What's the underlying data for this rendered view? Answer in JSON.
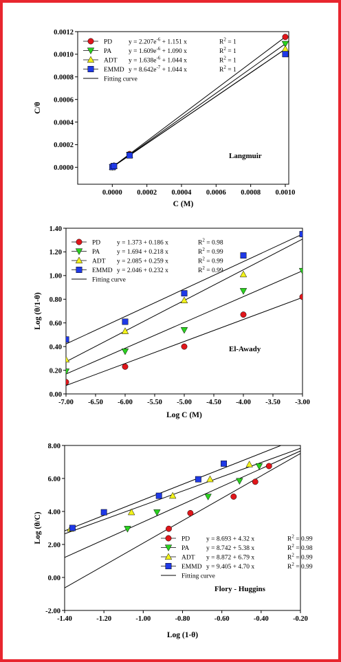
{
  "border_color": "#e8262f",
  "series_colors": {
    "PD": "#e0161b",
    "PA": "#2ad11f",
    "ADT": "#f2f21b",
    "EMMD": "#1f39e6"
  },
  "series_markers": {
    "PD": "circle",
    "PA": "triangle-down",
    "ADT": "triangle-up",
    "EMMD": "square"
  },
  "chart_data": [
    {
      "type": "scatter",
      "title": "",
      "annotation": "Langmuir",
      "xlabel": "C (M)",
      "ylabel": "C/θ",
      "xlim": [
        -0.0002,
        0.00102
      ],
      "ylim": [
        -0.00015,
        0.0012
      ],
      "xticks": [
        0.0,
        0.0002,
        0.0004,
        0.0006,
        0.0008,
        0.001
      ],
      "xtick_labels": [
        "0.0000",
        "0.0002",
        "0.0004",
        "0.0006",
        "0.0008",
        "0.0010"
      ],
      "yticks": [
        0.0,
        0.0002,
        0.0004,
        0.0006,
        0.0008,
        0.001,
        0.0012
      ],
      "ytick_labels": [
        "0.0000",
        "0.0002",
        "0.0004",
        "0.0006",
        "0.0008",
        "0.0010",
        "0.0012"
      ],
      "legend_position": "top-left",
      "fit_label": "Fitting curve",
      "series": [
        {
          "name": "PD",
          "equation": "y = 2.207e-6 + 1.151 x",
          "eq_base": "y = 2.207e",
          "eq_exp": "-6",
          "eq_tail": " + 1.151 x",
          "r2_label": "R",
          "r2_exp": "2",
          "r2_value": " = 1",
          "x": [
            1e-06,
            1e-05,
            0.0001,
            0.001
          ],
          "y": [
            3.4e-06,
            1.38e-05,
            0.000117,
            0.001153
          ],
          "fit": {
            "intercept": 2.207e-06,
            "slope": 1.151
          }
        },
        {
          "name": "PA",
          "equation": "y = 1.609e-6 + 1.090 x",
          "eq_base": "y = 1.609e",
          "eq_exp": "-6",
          "eq_tail": " + 1.090 x",
          "r2_label": "R",
          "r2_exp": "2",
          "r2_value": " = 1",
          "x": [
            1e-06,
            1e-05,
            0.0001,
            0.001
          ],
          "y": [
            2.7e-06,
            1.25e-05,
            0.000111,
            0.001092
          ],
          "fit": {
            "intercept": 1.609e-06,
            "slope": 1.09
          }
        },
        {
          "name": "ADT",
          "equation": "y = 1.638e-6 + 1.044 x",
          "eq_base": "y = 1.638e",
          "eq_exp": "-6",
          "eq_tail": " + 1.044 x",
          "r2_label": "R",
          "r2_exp": "2",
          "r2_value": " = 1",
          "x": [
            1e-06,
            1e-05,
            0.0001,
            0.001
          ],
          "y": [
            2.7e-06,
            1.21e-05,
            0.000106,
            0.001046
          ],
          "fit": {
            "intercept": 1.638e-06,
            "slope": 1.044
          }
        },
        {
          "name": "EMMD",
          "equation": "y = 8.642e-7 + 1.044 x",
          "eq_base": "y = 8.642e",
          "eq_exp": "-7",
          "eq_tail": " + 1.044 x",
          "r2_label": "R",
          "r2_exp": "2",
          "r2_value": " = 1",
          "x": [
            1e-06,
            1e-05,
            0.0001,
            0.001
          ],
          "y": [
            1.9e-06,
            1.13e-05,
            0.000105,
            0.001001
          ],
          "fit": {
            "intercept": 8.642e-07,
            "slope": 1.044
          }
        }
      ]
    },
    {
      "type": "scatter",
      "title": "",
      "annotation": "El-Awady",
      "xlabel": "Log C (M)",
      "ylabel": "Log (θ/1-θ)",
      "xlim": [
        -7.0,
        -3.0
      ],
      "ylim": [
        0.0,
        1.4
      ],
      "xticks": [
        -7.0,
        -6.5,
        -6.0,
        -5.5,
        -5.0,
        -4.5,
        -4.0,
        -3.5,
        -3.0
      ],
      "xtick_labels": [
        "-7.00",
        "-6.50",
        "-6.00",
        "-5.50",
        "-5.00",
        "-4.50",
        "-4.00",
        "-3.50",
        "-3.00"
      ],
      "yticks": [
        0.0,
        0.2,
        0.4,
        0.6,
        0.8,
        1.0,
        1.2,
        1.4
      ],
      "ytick_labels": [
        "0.00",
        "0.20",
        "0.40",
        "0.60",
        "0.80",
        "1.00",
        "1.20",
        "1.40"
      ],
      "legend_position": "top-left",
      "fit_label": "Fitting curve",
      "series": [
        {
          "name": "PD",
          "equation": "y = 1.373 + 0.186 x",
          "eq_base": "y = 1.373 + 0.186 x",
          "eq_exp": "",
          "eq_tail": "",
          "r2_label": "R",
          "r2_exp": "2",
          "r2_value": " = 0.98",
          "x": [
            -7,
            -6,
            -5,
            -4,
            -3
          ],
          "y": [
            0.1,
            0.23,
            0.4,
            0.67,
            0.82
          ],
          "fit": {
            "intercept": 1.373,
            "slope": 0.186
          }
        },
        {
          "name": "PA",
          "equation": "y = 1.694 + 0.218 x",
          "eq_base": "y = 1.694 + 0.218 x",
          "eq_exp": "",
          "eq_tail": "",
          "r2_label": "R",
          "r2_exp": "2",
          "r2_value": " = 0.99",
          "x": [
            -7,
            -6,
            -5,
            -4,
            -3
          ],
          "y": [
            0.19,
            0.36,
            0.54,
            0.87,
            1.04
          ],
          "fit": {
            "intercept": 1.694,
            "slope": 0.218
          }
        },
        {
          "name": "ADT",
          "equation": "y = 2.085 + 0.259 x",
          "eq_base": "y = 2.085 + 0.259 x",
          "eq_exp": "",
          "eq_tail": "",
          "r2_label": "R",
          "r2_exp": "2",
          "r2_value": " = 0.99",
          "x": [
            -7,
            -6,
            -5,
            -4
          ],
          "y": [
            0.29,
            0.53,
            0.79,
            1.01
          ],
          "fit": {
            "intercept": 2.085,
            "slope": 0.259
          }
        },
        {
          "name": "EMMD",
          "equation": "y = 2.046 + 0.232 x",
          "eq_base": "y = 2.046 + 0.232 x",
          "eq_exp": "",
          "eq_tail": "",
          "r2_label": "R",
          "r2_exp": "2",
          "r2_value": " = 0.99",
          "x": [
            -7,
            -6,
            -5,
            -4,
            -3
          ],
          "y": [
            0.46,
            0.61,
            0.85,
            1.17,
            1.35
          ],
          "fit": {
            "intercept": 2.046,
            "slope": 0.232
          }
        }
      ]
    },
    {
      "type": "scatter",
      "title": "",
      "annotation": "Flory - Huggins",
      "xlabel": "Log (1-θ)",
      "ylabel": "Log (θ/C)",
      "xlim": [
        -1.4,
        -0.2
      ],
      "ylim": [
        -2.0,
        8.0
      ],
      "xticks": [
        -1.4,
        -1.2,
        -1.0,
        -0.8,
        -0.6,
        -0.4,
        -0.2
      ],
      "xtick_labels": [
        "-1.40",
        "-1.20",
        "-1.00",
        "-0.80",
        "-0.60",
        "-0.40",
        "-0.20"
      ],
      "yticks": [
        -2,
        0,
        2,
        4,
        6,
        8
      ],
      "ytick_labels": [
        "-2.00",
        "0.00",
        "2.00",
        "4.00",
        "6.00",
        "8.00"
      ],
      "legend_position": "bottom-right",
      "fit_label": "Fitting curve",
      "series": [
        {
          "name": "PD",
          "equation": "y = 8.693 + 4.32 x",
          "eq_base": "y = 8.693 + 4.32 x",
          "eq_exp": "",
          "eq_tail": "",
          "r2_label": "R",
          "r2_exp": "2",
          "r2_value": " = 0.99",
          "x": [
            -0.87,
            -0.76,
            -0.54,
            -0.43,
            -0.36
          ],
          "y": [
            2.95,
            3.9,
            4.9,
            5.8,
            6.75
          ],
          "fit": {
            "intercept": 8.693,
            "slope": 4.32
          }
        },
        {
          "name": "PA",
          "equation": "y = 8.742 + 5.38 x",
          "eq_base": "y = 8.742 + 5.38 x",
          "eq_exp": "",
          "eq_tail": "",
          "r2_label": "R",
          "r2_exp": "2",
          "r2_value": " = 0.98",
          "x": [
            -1.08,
            -0.93,
            -0.67,
            -0.51,
            -0.41
          ],
          "y": [
            2.95,
            3.95,
            4.9,
            5.85,
            6.75
          ],
          "fit": {
            "intercept": 8.742,
            "slope": 5.38
          }
        },
        {
          "name": "ADT",
          "equation": "y = 8.872 + 6.79 x",
          "eq_base": "y = 8.872 + 6.79 x",
          "eq_exp": "",
          "eq_tail": "",
          "r2_label": "R",
          "r2_exp": "2",
          "r2_value": " = 0.99",
          "x": [
            -1.37,
            -1.06,
            -0.85,
            -0.66,
            -0.46
          ],
          "y": [
            2.95,
            3.95,
            4.95,
            5.95,
            6.85
          ],
          "fit": {
            "intercept": 8.872,
            "slope": 6.79
          }
        },
        {
          "name": "EMMD",
          "equation": "y = 9.405 + 4.70 x",
          "eq_base": "y = 9.405 + 4.70 x",
          "eq_exp": "",
          "eq_tail": "",
          "r2_label": "R",
          "r2_exp": "2",
          "r2_value": " = 0.99",
          "x": [
            -1.36,
            -1.2,
            -0.92,
            -0.72,
            -0.59
          ],
          "y": [
            3.0,
            3.95,
            4.95,
            5.95,
            6.9
          ],
          "fit": {
            "intercept": 9.405,
            "slope": 4.7
          }
        }
      ]
    }
  ]
}
